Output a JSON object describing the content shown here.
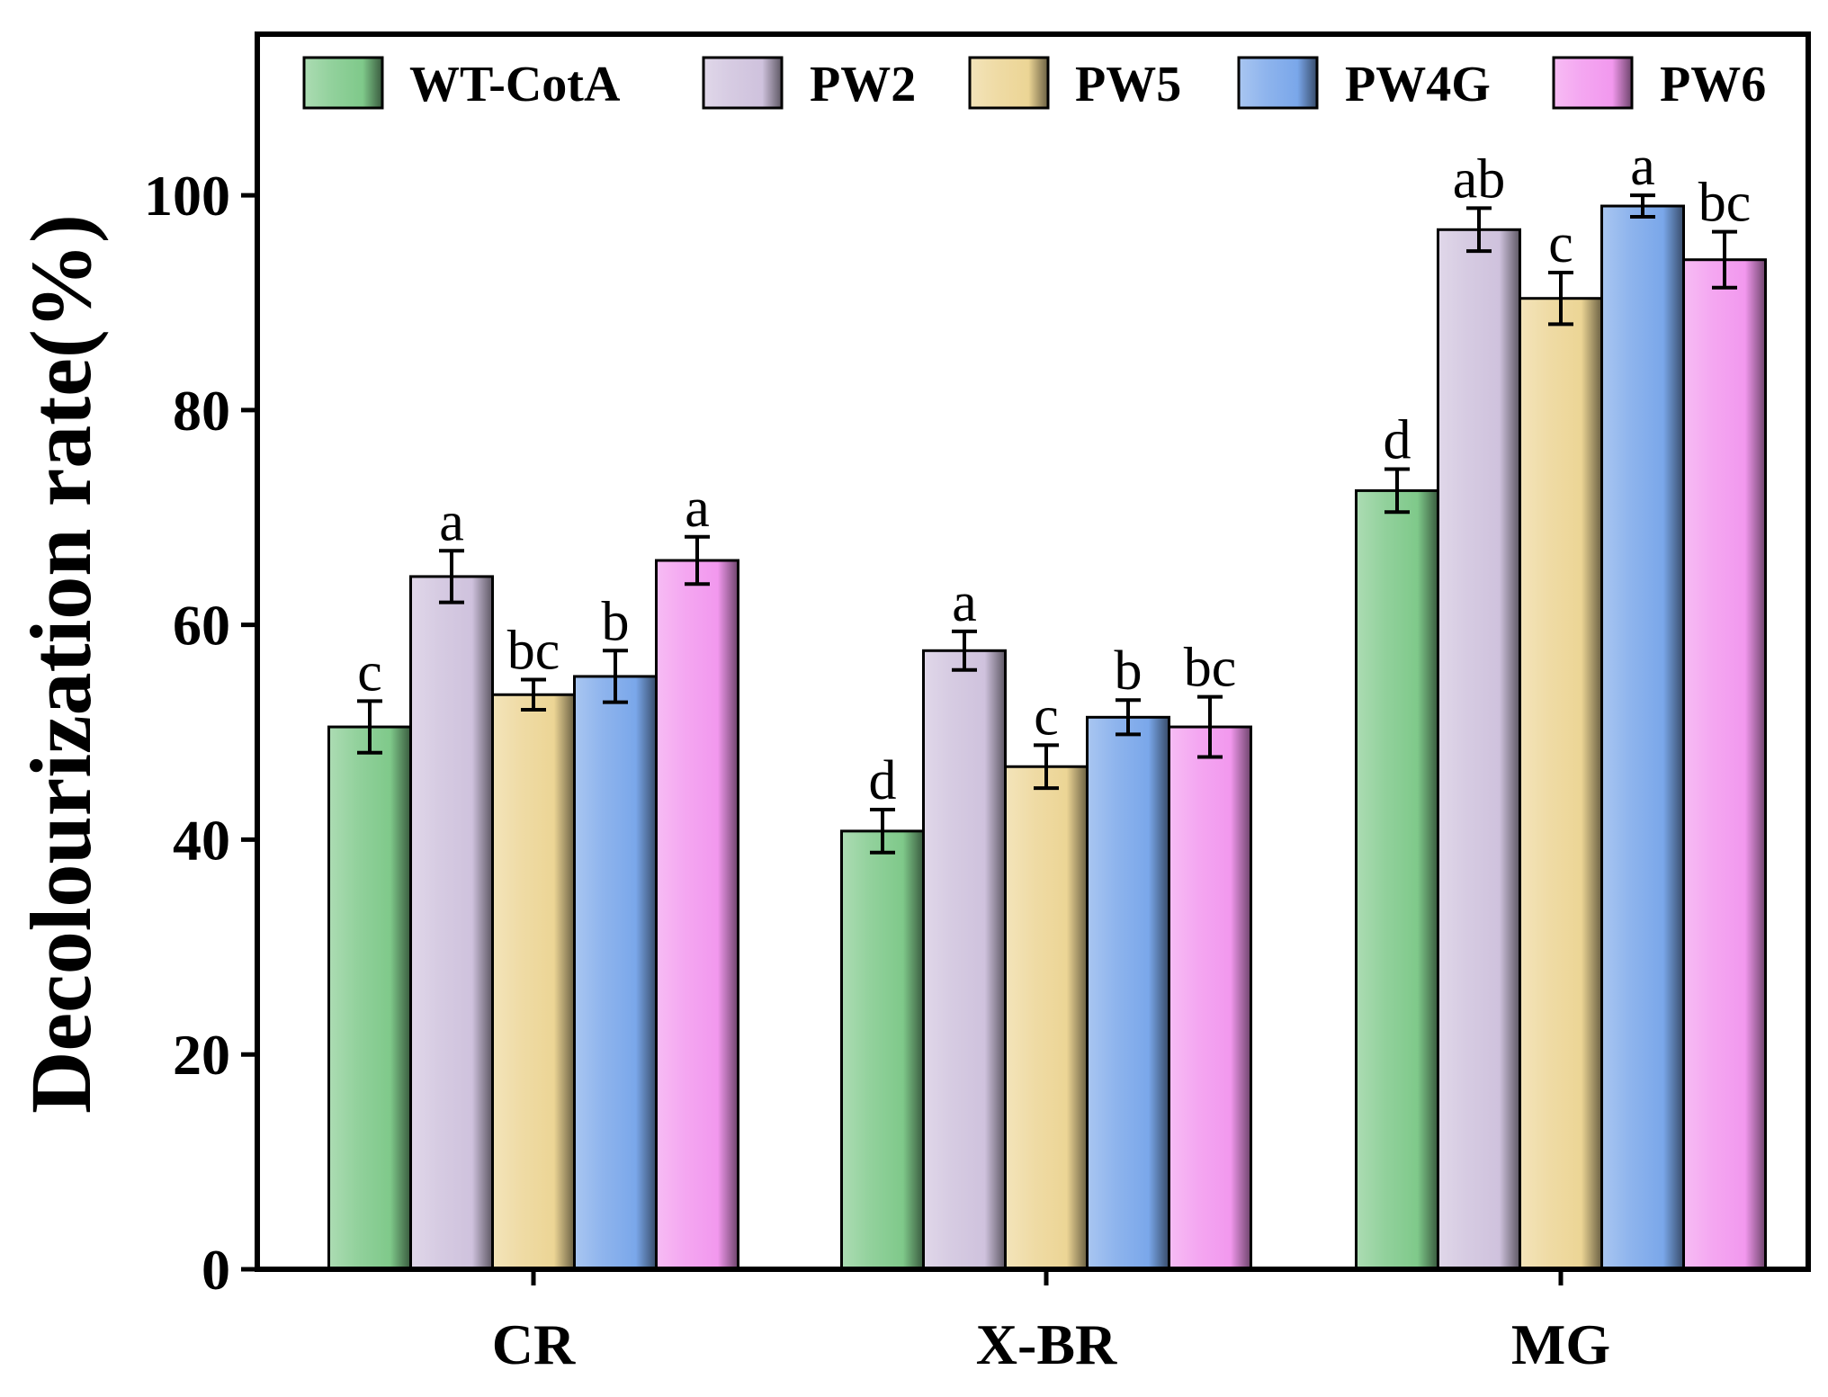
{
  "chart_data": {
    "type": "bar",
    "title": "",
    "xlabel": "",
    "ylabel": "Decolourization rate(%)",
    "ylim": [
      0,
      115
    ],
    "yticks": [
      0,
      20,
      40,
      60,
      80,
      100
    ],
    "legend_position": "top",
    "grid": false,
    "categories": [
      "CR",
      "X-BR",
      "MG"
    ],
    "series": [
      {
        "name": "WT-CotA",
        "color": "#7fc98a",
        "values": [
          50.5,
          40.8,
          72.5
        ],
        "errors": [
          2.4,
          2.0,
          2.0
        ],
        "significance": [
          "c",
          "d",
          "d"
        ]
      },
      {
        "name": "PW2",
        "color": "#cfc2dd",
        "values": [
          64.5,
          57.6,
          96.8
        ],
        "errors": [
          2.4,
          1.8,
          2.0
        ],
        "significance": [
          "a",
          "a",
          "ab"
        ]
      },
      {
        "name": "PW5",
        "color": "#ecd595",
        "values": [
          53.5,
          46.8,
          90.4
        ],
        "errors": [
          1.4,
          2.0,
          2.4
        ],
        "significance": [
          "bc",
          "c",
          "c"
        ]
      },
      {
        "name": "PW4G",
        "color": "#7aa7ea",
        "values": [
          55.2,
          51.4,
          99.0
        ],
        "errors": [
          2.4,
          1.6,
          1.0
        ],
        "significance": [
          "b",
          "b",
          "a"
        ]
      },
      {
        "name": "PW6",
        "color": "#f298ee",
        "values": [
          66.0,
          50.5,
          94.0
        ],
        "errors": [
          2.2,
          2.8,
          2.6
        ],
        "significance": [
          "a",
          "bc",
          "bc"
        ]
      }
    ]
  }
}
